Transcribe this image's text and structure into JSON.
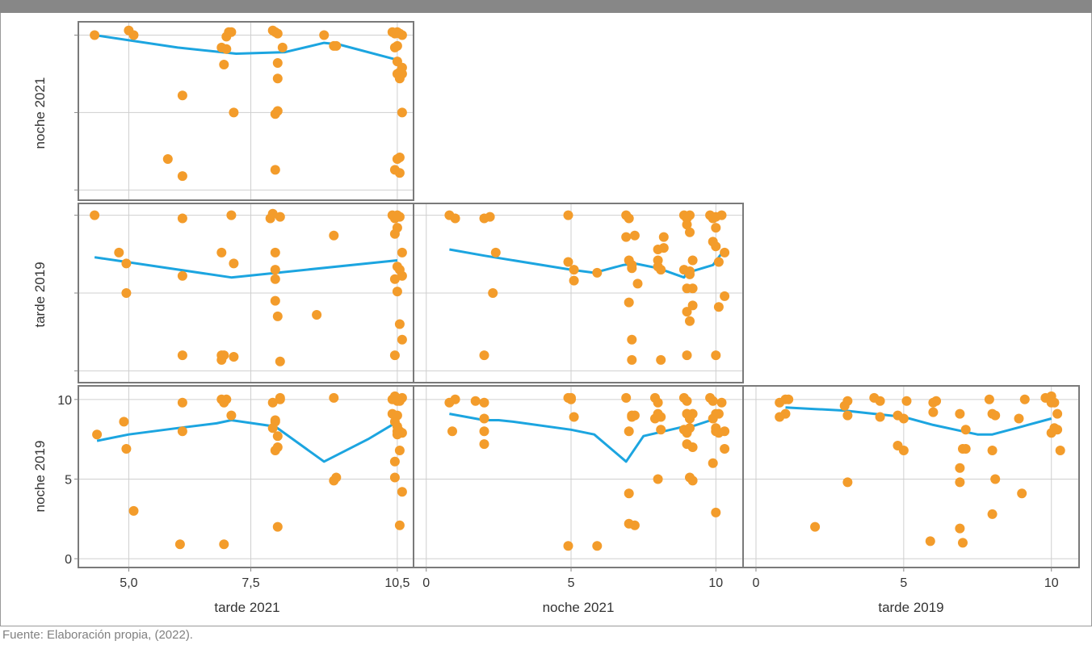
{
  "source": "Fuente: Elaboración propia, (2022).",
  "colors": {
    "header_bar": "#878787",
    "point": "#f39c2b",
    "trend": "#1ca5e0",
    "panel_border": "#7a7a7a",
    "grid": "#cfcfcf",
    "text": "#333333"
  },
  "axis_titles": {
    "rows": [
      "noche 2021",
      "tarde 2019",
      "noche 2019"
    ],
    "cols": [
      "tarde 2021",
      "noche 2021",
      "tarde 2019"
    ]
  },
  "chart_data": [
    {
      "type": "scatter",
      "panel": "noche 2021 vs tarde 2021",
      "xlabel": "",
      "ylabel": "noche 2021",
      "xlim": [
        4.05,
        10.75
      ],
      "ylim": [
        -0.4,
        10.6
      ],
      "x": [
        4.3,
        5.0,
        5.1,
        6.1,
        5.8,
        6.1,
        6.9,
        7.0,
        7.0,
        7.05,
        7.1,
        7.15,
        6.95,
        7.95,
        8.0,
        8.05,
        8.15,
        8.0,
        8.05,
        8.05,
        8.05,
        8.0,
        9.0,
        9.2,
        9.25,
        10.4,
        10.45,
        10.5,
        10.55,
        10.6,
        10.5,
        10.45,
        10.5,
        10.55,
        10.6,
        10.5,
        10.55,
        10.6,
        10.5,
        10.55,
        10.55,
        10.45,
        10.6
      ],
      "y": [
        10.0,
        10.3,
        10.0,
        6.1,
        2.0,
        0.9,
        9.2,
        9.9,
        9.1,
        10.2,
        10.2,
        5.0,
        8.1,
        10.3,
        10.2,
        10.1,
        9.2,
        4.9,
        5.1,
        8.2,
        7.2,
        1.3,
        10.0,
        9.3,
        9.3,
        10.2,
        10.1,
        10.2,
        10.1,
        10.0,
        9.3,
        9.2,
        7.5,
        7.6,
        7.5,
        8.3,
        7.2,
        5.0,
        2.0,
        2.1,
        1.1,
        1.3,
        7.9
      ],
      "trend": {
        "x": [
          4.3,
          6.0,
          7.2,
          8.2,
          9.0,
          9.3,
          10.5
        ],
        "y": [
          10.0,
          9.2,
          8.8,
          8.9,
          9.5,
          9.4,
          8.4
        ]
      }
    },
    {
      "type": "scatter",
      "panel": "tarde 2019 vs tarde 2021",
      "xlabel": "",
      "ylabel": "tarde 2019",
      "xlim": [
        4.05,
        10.75
      ],
      "ylim": [
        -0.5,
        10.5
      ],
      "x": [
        4.3,
        4.8,
        4.95,
        4.95,
        6.1,
        6.1,
        6.1,
        6.9,
        6.9,
        6.9,
        6.95,
        7.1,
        7.15,
        7.15,
        7.9,
        7.95,
        8.0,
        8.0,
        8.0,
        8.05,
        8.0,
        8.1,
        8.1,
        8.85,
        9.2,
        10.4,
        10.45,
        10.5,
        10.55,
        10.6,
        10.5,
        10.45,
        10.5,
        10.55,
        10.6,
        10.5,
        10.45,
        10.55,
        10.6,
        10.45
      ],
      "y": [
        10.0,
        7.6,
        6.9,
        5.0,
        9.8,
        6.1,
        1.0,
        7.6,
        1.0,
        0.7,
        1.0,
        10.0,
        6.9,
        0.9,
        9.8,
        10.1,
        6.5,
        5.9,
        4.5,
        3.5,
        7.6,
        9.9,
        0.6,
        3.6,
        8.7,
        10.0,
        9.8,
        10.0,
        9.9,
        7.6,
        9.2,
        8.8,
        6.7,
        6.5,
        6.1,
        5.1,
        5.9,
        3.0,
        2.0,
        1.0
      ],
      "trend": {
        "x": [
          4.3,
          7.1,
          10.5
        ],
        "y": [
          7.3,
          6.0,
          7.1
        ]
      }
    },
    {
      "type": "scatter",
      "panel": "tarde 2019 vs noche 2021",
      "xlabel": "",
      "ylabel": "",
      "xlim": [
        -0.3,
        10.8
      ],
      "ylim": [
        -0.5,
        10.5
      ],
      "x": [
        0.8,
        1.0,
        2.0,
        2.2,
        2.4,
        2.0,
        2.3,
        4.9,
        5.1,
        4.9,
        5.1,
        5.9,
        6.9,
        7.0,
        7.1,
        7.1,
        6.9,
        7.0,
        7.1,
        7.1,
        7.0,
        7.2,
        7.3,
        8.0,
        8.1,
        8.2,
        8.0,
        8.1,
        8.2,
        8.0,
        8.9,
        9.0,
        9.1,
        9.0,
        9.1,
        9.2,
        9.1,
        9.2,
        8.9,
        9.0,
        9.1,
        9.2,
        9.0,
        9.0,
        9.1,
        9.8,
        9.9,
        10.0,
        10.2,
        10.0,
        9.9,
        10.0,
        10.1,
        10.3,
        10.1,
        10.3,
        10.0
      ],
      "y": [
        10.0,
        9.8,
        9.8,
        9.9,
        7.6,
        1.0,
        5.0,
        10.0,
        6.5,
        7.0,
        5.8,
        6.3,
        10.0,
        9.8,
        6.8,
        6.6,
        8.6,
        4.4,
        2.0,
        0.7,
        7.1,
        8.7,
        5.6,
        7.8,
        6.5,
        8.6,
        6.7,
        0.7,
        7.9,
        7.1,
        10.0,
        9.4,
        10.0,
        9.8,
        8.9,
        7.1,
        6.4,
        5.3,
        6.5,
        5.3,
        6.2,
        4.2,
        3.8,
        1.0,
        3.2,
        10.0,
        9.8,
        9.9,
        10.0,
        9.2,
        8.3,
        8.0,
        7.0,
        7.6,
        4.1,
        4.8,
        1.0
      ],
      "trend": {
        "x": [
          0.8,
          2.0,
          5.0,
          5.8,
          6.8,
          7.2,
          8.0,
          8.9,
          9.0,
          9.9,
          10.3
        ],
        "y": [
          7.8,
          7.4,
          6.5,
          6.3,
          6.8,
          6.9,
          6.6,
          6.0,
          6.3,
          6.8,
          7.8
        ]
      }
    },
    {
      "type": "scatter",
      "panel": "noche 2019 vs tarde 2021",
      "xlabel": "tarde 2021",
      "ylabel": "noche 2019",
      "xlim": [
        4.05,
        10.75
      ],
      "ylim": [
        -0.3,
        10.6
      ],
      "x": [
        4.35,
        4.9,
        4.95,
        5.1,
        6.1,
        6.1,
        6.05,
        6.9,
        7.0,
        7.1,
        6.95,
        6.95,
        7.95,
        8.0,
        8.05,
        8.0,
        8.05,
        8.1,
        7.95,
        8.0,
        8.05,
        8.1,
        9.2,
        9.2,
        9.25,
        10.4,
        10.45,
        10.5,
        10.55,
        10.6,
        10.5,
        10.45,
        10.5,
        10.55,
        10.6,
        10.5,
        10.45,
        10.55,
        10.6,
        10.45,
        10.5,
        10.55,
        10.4
      ],
      "y": [
        7.8,
        8.6,
        6.9,
        3.0,
        9.8,
        8.0,
        0.9,
        10.0,
        10.0,
        9.0,
        0.9,
        9.8,
        9.8,
        8.7,
        7.0,
        6.8,
        7.7,
        10.0,
        8.2,
        8.6,
        2.0,
        10.1,
        10.1,
        4.9,
        5.1,
        10.0,
        10.2,
        9.9,
        9.9,
        10.1,
        9.0,
        8.6,
        8.0,
        8.0,
        7.9,
        7.8,
        6.1,
        6.8,
        4.2,
        5.1,
        8.3,
        2.1,
        9.1
      ],
      "trend": {
        "x": [
          4.35,
          5.0,
          6.0,
          6.8,
          7.1,
          8.0,
          9.0,
          9.9,
          10.5
        ],
        "y": [
          7.4,
          7.8,
          8.2,
          8.5,
          8.7,
          8.3,
          6.1,
          7.5,
          8.6
        ]
      }
    },
    {
      "type": "scatter",
      "panel": "noche 2019 vs noche 2021",
      "xlabel": "noche 2021",
      "ylabel": "",
      "xlim": [
        -0.3,
        10.8
      ],
      "ylim": [
        -0.3,
        10.6
      ],
      "x": [
        0.8,
        0.9,
        1.0,
        1.7,
        2.0,
        2.0,
        2.0,
        2.0,
        4.9,
        5.0,
        5.1,
        4.9,
        5.0,
        5.9,
        6.9,
        7.0,
        7.1,
        7.0,
        7.2,
        7.0,
        7.1,
        7.2,
        7.9,
        7.9,
        8.0,
        8.1,
        8.1,
        8.0,
        8.0,
        8.9,
        9.0,
        9.1,
        9.0,
        9.1,
        9.2,
        9.1,
        9.2,
        8.9,
        9.0,
        9.1,
        9.2,
        9.0,
        9.0,
        9.1,
        9.8,
        9.9,
        10.0,
        10.2,
        10.0,
        9.9,
        10.0,
        10.1,
        10.3,
        10.1,
        10.3,
        10.0,
        9.9
      ],
      "y": [
        9.8,
        8.0,
        10.0,
        9.9,
        9.8,
        8.8,
        8.0,
        7.2,
        10.1,
        10.0,
        8.9,
        0.8,
        10.1,
        0.8,
        10.1,
        8.0,
        9.0,
        2.2,
        2.1,
        4.1,
        8.9,
        9.0,
        10.1,
        8.8,
        9.8,
        8.9,
        8.1,
        9.1,
        5.0,
        10.1,
        9.9,
        9.0,
        7.9,
        8.2,
        9.1,
        8.8,
        7.0,
        8.1,
        7.2,
        5.1,
        4.9,
        9.1,
        9.1,
        8.8,
        10.1,
        9.9,
        9.1,
        9.8,
        8.0,
        8.8,
        8.2,
        7.9,
        6.9,
        9.1,
        8.0,
        2.9,
        6.0
      ],
      "trend": {
        "x": [
          0.8,
          2.0,
          2.5,
          3.0,
          5.0,
          5.8,
          6.9,
          7.5,
          8.9,
          9.0,
          10.0
        ],
        "y": [
          9.1,
          8.7,
          8.7,
          8.6,
          8.1,
          7.8,
          6.1,
          7.7,
          8.3,
          8.2,
          8.8
        ]
      }
    },
    {
      "type": "scatter",
      "panel": "noche 2019 vs tarde 2019",
      "xlabel": "tarde 2019",
      "ylabel": "",
      "xlim": [
        -0.3,
        10.8
      ],
      "ylim": [
        -0.3,
        10.6
      ],
      "x": [
        0.8,
        0.8,
        1.0,
        1.1,
        1.0,
        2.0,
        3.0,
        3.1,
        3.1,
        3.1,
        4.0,
        4.2,
        4.2,
        4.8,
        4.8,
        5.0,
        5.0,
        5.1,
        5.9,
        6.0,
        6.1,
        6.0,
        6.9,
        6.9,
        6.9,
        7.0,
        7.1,
        7.1,
        6.9,
        7.0,
        7.9,
        8.0,
        8.0,
        8.0,
        8.1,
        8.1,
        8.9,
        9.0,
        9.1,
        9.8,
        10.0,
        10.1,
        10.2,
        10.1,
        10.0,
        10.3,
        10.2,
        10.0
      ],
      "y": [
        9.8,
        8.9,
        10.0,
        10.0,
        9.1,
        2.0,
        9.6,
        9.9,
        9.0,
        4.8,
        10.1,
        9.9,
        8.9,
        9.0,
        7.1,
        8.8,
        6.8,
        9.9,
        1.1,
        9.8,
        9.9,
        9.2,
        9.1,
        5.7,
        4.8,
        1.0,
        8.1,
        6.9,
        1.9,
        6.9,
        10.0,
        9.1,
        6.8,
        2.8,
        9.0,
        5.0,
        8.8,
        4.1,
        10.0,
        10.1,
        10.2,
        9.8,
        8.1,
        8.2,
        7.9,
        6.8,
        9.1,
        9.8
      ],
      "trend": {
        "x": [
          1.0,
          2.0,
          3.0,
          4.0,
          5.0,
          6.0,
          7.0,
          7.5,
          8.0,
          9.0,
          10.0
        ],
        "y": [
          9.5,
          9.4,
          9.3,
          9.1,
          8.9,
          8.4,
          8.0,
          7.8,
          7.8,
          8.3,
          8.8
        ]
      }
    }
  ]
}
